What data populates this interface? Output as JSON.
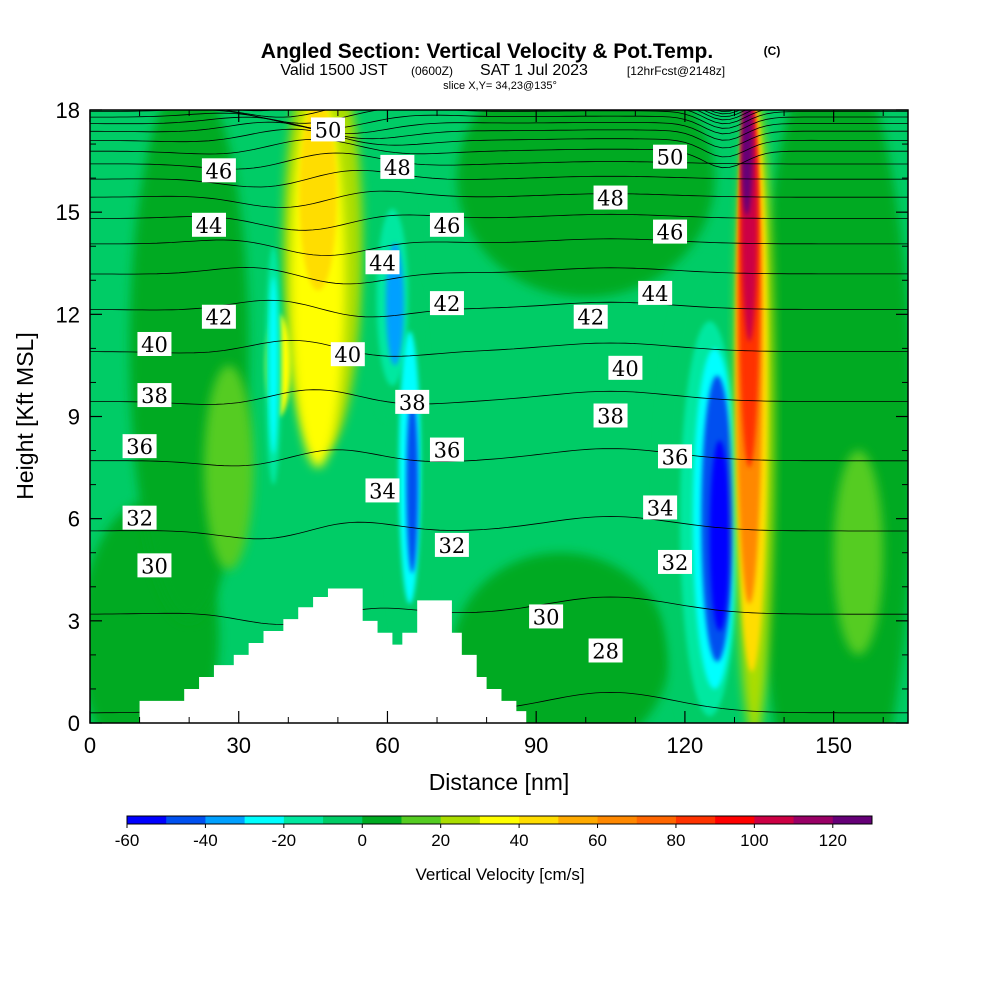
{
  "chart_data": {
    "type": "heatmap",
    "title": "Angled Section: Vertical Velocity & Pot.Temp.",
    "title_mark": "(C)",
    "subtitle": {
      "valid": "Valid 1500 JST",
      "utc": "(0600Z)",
      "date": "SAT 1 Jul 2023",
      "forecast": "[12hrFcst@2148z]",
      "slice": "slice X,Y= 34,23@135°"
    },
    "xlabel": "Distance [nm]",
    "ylabel": "Height [Kft MSL]",
    "xlim": [
      0,
      165
    ],
    "ylim": [
      0,
      18
    ],
    "x_ticks": [
      0,
      30,
      60,
      90,
      120,
      150
    ],
    "y_ticks": [
      0,
      3,
      6,
      9,
      12,
      15,
      18
    ],
    "grid": false,
    "colorbar": {
      "title": "Vertical Velocity [cm/s]",
      "levels": [
        -60,
        -50,
        -40,
        -30,
        -20,
        -10,
        0,
        10,
        20,
        30,
        40,
        50,
        60,
        70,
        80,
        90,
        100,
        110,
        120,
        130
      ],
      "tick_labels": [
        -60,
        -40,
        -20,
        0,
        20,
        40,
        60,
        80,
        100,
        120
      ],
      "colors": [
        "#0000ff",
        "#0050f0",
        "#00a0ff",
        "#00ffff",
        "#00e8a0",
        "#00cc66",
        "#00aa22",
        "#55cc22",
        "#aadd00",
        "#ffff00",
        "#ffdd00",
        "#ffaa00",
        "#ff8800",
        "#ff6600",
        "#ff3300",
        "#ff0000",
        "#cc0044",
        "#990066",
        "#660077"
      ]
    },
    "vertical_velocity_features": [
      {
        "x": 37,
        "y_range": [
          7,
          14
        ],
        "value": -25
      },
      {
        "x": 46,
        "y_range": [
          8,
          18
        ],
        "value": 40
      },
      {
        "x": 61,
        "y_range": [
          9,
          14
        ],
        "value": -30
      },
      {
        "x": 65,
        "y_range": [
          4,
          10
        ],
        "value": -45
      },
      {
        "x": 126,
        "y_range": [
          1,
          11
        ],
        "value": -50
      },
      {
        "x": 133,
        "y_range": [
          1,
          18
        ],
        "value": 100
      }
    ],
    "terrain": [
      [
        10,
        0.65
      ],
      [
        16,
        0.65
      ],
      [
        19,
        1.0
      ],
      [
        22,
        1.35
      ],
      [
        25,
        1.7
      ],
      [
        29,
        2.0
      ],
      [
        32,
        2.35
      ],
      [
        35,
        2.7
      ],
      [
        39,
        3.05
      ],
      [
        42,
        3.4
      ],
      [
        45,
        3.7
      ],
      [
        48,
        3.95
      ],
      [
        52,
        3.95
      ],
      [
        55,
        3.0
      ],
      [
        58,
        2.65
      ],
      [
        61,
        2.3
      ],
      [
        63,
        2.65
      ],
      [
        66,
        3.6
      ],
      [
        70,
        3.6
      ],
      [
        73,
        2.65
      ],
      [
        75,
        2.0
      ],
      [
        78,
        1.35
      ],
      [
        80,
        1.0
      ],
      [
        83,
        0.65
      ],
      [
        86,
        0.35
      ],
      [
        88,
        0
      ]
    ],
    "isotherms": [
      {
        "value": 28,
        "label_pos": [
          104,
          2.1
        ]
      },
      {
        "value": 30,
        "label_pos": [
          13,
          4.6
        ],
        "label_pos2": [
          92,
          3.1
        ]
      },
      {
        "value": 32,
        "label_pos": [
          10,
          6.0
        ],
        "label_pos2": [
          73,
          5.2
        ],
        "label_pos3": [
          118,
          4.7
        ]
      },
      {
        "value": 34,
        "label_pos": [
          59,
          6.8
        ],
        "label_pos2": [
          115,
          6.3
        ]
      },
      {
        "value": 36,
        "label_pos": [
          10,
          8.1
        ],
        "label_pos2": [
          72,
          8.0
        ],
        "label_pos3": [
          118,
          7.8
        ]
      },
      {
        "value": 38,
        "label_pos": [
          13,
          9.6
        ],
        "label_pos2": [
          65,
          9.4
        ],
        "label_pos3": [
          105,
          9.0
        ]
      },
      {
        "value": 40,
        "label_pos": [
          13,
          11.1
        ],
        "label_pos2": [
          52,
          10.8
        ],
        "label_pos3": [
          108,
          10.4
        ]
      },
      {
        "value": 42,
        "label_pos": [
          26,
          11.9
        ],
        "label_pos2": [
          72,
          12.3
        ],
        "label_pos3": [
          101,
          11.9
        ]
      },
      {
        "value": 44,
        "label_pos": [
          24,
          14.6
        ],
        "label_pos2": [
          59,
          13.5
        ],
        "label_pos3": [
          114,
          12.6
        ]
      },
      {
        "value": 46,
        "label_pos": [
          26,
          16.2
        ],
        "label_pos2": [
          72,
          14.6
        ],
        "label_pos3": [
          117,
          14.4
        ]
      },
      {
        "value": 48,
        "label_pos": [
          62,
          16.3
        ],
        "label_pos2": [
          105,
          15.4
        ]
      },
      {
        "value": 50,
        "label_pos": [
          48,
          17.4
        ],
        "label_pos2": [
          117,
          16.6
        ]
      }
    ]
  }
}
